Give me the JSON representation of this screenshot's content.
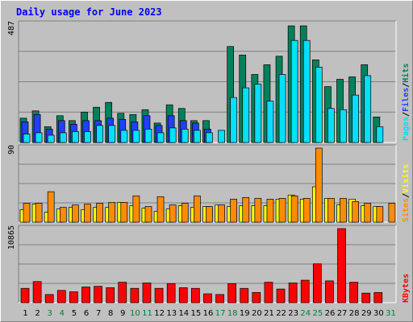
{
  "title": "Daily usage for June 2023",
  "colors": {
    "pages": "#00e0ff",
    "files": "#2040ff",
    "hits": "#00805c",
    "sites": "#ff8c00",
    "visits": "#ffff00",
    "kbytes": "#ff0000",
    "weekend": "#008040",
    "weekday": "#000000",
    "panel_bg": "#c0c0c0",
    "grid": "#808080"
  },
  "legend": {
    "top": {
      "pages": "Pages",
      "files": "Files",
      "hits": "Hits",
      "sep": "/"
    },
    "mid": {
      "sites": "Sites",
      "visits": "Visits",
      "sep": "/"
    },
    "bottom": {
      "kbytes": "KBytes"
    }
  },
  "chart_data": [
    {
      "type": "bar",
      "panel": "hits-files-pages",
      "ymax_label": "487",
      "ylim": [
        0,
        487
      ],
      "categories": [
        "1",
        "2",
        "3",
        "4",
        "5",
        "6",
        "7",
        "8",
        "9",
        "10",
        "11",
        "12",
        "13",
        "14",
        "15",
        "16",
        "17",
        "18",
        "19",
        "20",
        "21",
        "22",
        "23",
        "24",
        "25",
        "26",
        "27",
        "28",
        "29",
        "30",
        "31"
      ],
      "series": [
        {
          "name": "Hits",
          "values": [
            100,
            130,
            65,
            110,
            90,
            125,
            145,
            165,
            120,
            115,
            135,
            80,
            155,
            140,
            90,
            90,
            0,
            395,
            360,
            280,
            320,
            355,
            480,
            480,
            340,
            230,
            260,
            270,
            320,
            105,
            0
          ]
        },
        {
          "name": "Files",
          "values": [
            85,
            115,
            55,
            90,
            75,
            90,
            90,
            100,
            95,
            85,
            110,
            70,
            110,
            90,
            80,
            55,
            0,
            0,
            0,
            0,
            0,
            0,
            0,
            0,
            0,
            0,
            0,
            0,
            0,
            0,
            0
          ]
        },
        {
          "name": "Pages",
          "values": [
            35,
            40,
            30,
            40,
            45,
            45,
            70,
            70,
            50,
            50,
            55,
            40,
            60,
            55,
            50,
            40,
            50,
            185,
            225,
            240,
            170,
            280,
            420,
            420,
            310,
            140,
            135,
            195,
            275,
            65,
            0
          ]
        }
      ]
    },
    {
      "type": "bar",
      "panel": "visits-sites",
      "ymax_label": "90",
      "ylim": [
        0,
        90
      ],
      "categories": [
        "1",
        "2",
        "3",
        "4",
        "5",
        "6",
        "7",
        "8",
        "9",
        "10",
        "11",
        "12",
        "13",
        "14",
        "15",
        "16",
        "17",
        "18",
        "19",
        "20",
        "21",
        "22",
        "23",
        "24",
        "25",
        "26",
        "27",
        "28",
        "29",
        "30",
        "31"
      ],
      "series": [
        {
          "name": "Visits",
          "values": [
            15,
            22,
            12,
            16,
            18,
            15,
            18,
            18,
            24,
            20,
            17,
            13,
            16,
            20,
            18,
            19,
            21,
            19,
            20,
            20,
            20,
            28,
            33,
            28,
            43,
            29,
            21,
            28,
            20,
            19,
            0
          ]
        },
        {
          "name": "Sites",
          "values": [
            23,
            23,
            37,
            18,
            21,
            22,
            23,
            24,
            24,
            32,
            19,
            31,
            21,
            23,
            32,
            19,
            21,
            28,
            30,
            29,
            28,
            29,
            32,
            29,
            90,
            29,
            29,
            25,
            23,
            19,
            23
          ]
        }
      ]
    },
    {
      "type": "bar",
      "panel": "kbytes",
      "ymax_label": "10865",
      "ylim": [
        0,
        10865
      ],
      "categories": [
        "1",
        "2",
        "3",
        "4",
        "5",
        "6",
        "7",
        "8",
        "9",
        "10",
        "11",
        "12",
        "13",
        "14",
        "15",
        "16",
        "17",
        "18",
        "19",
        "20",
        "21",
        "22",
        "23",
        "24",
        "25",
        "26",
        "27",
        "28",
        "29",
        "30",
        "31"
      ],
      "series": [
        {
          "name": "KBytes",
          "values": [
            2100,
            3100,
            1200,
            1800,
            1600,
            2300,
            2400,
            2200,
            3000,
            2100,
            2900,
            2100,
            2800,
            2200,
            2100,
            1300,
            1200,
            2800,
            2100,
            1500,
            3000,
            2000,
            2900,
            3300,
            5700,
            3200,
            10865,
            3000,
            1400,
            1500,
            0
          ]
        }
      ]
    }
  ],
  "day_labels": [
    "1",
    "2",
    "3",
    "4",
    "5",
    "6",
    "7",
    "8",
    "9",
    "10",
    "11",
    "12",
    "13",
    "14",
    "15",
    "16",
    "17",
    "18",
    "19",
    "20",
    "21",
    "22",
    "23",
    "24",
    "25",
    "26",
    "27",
    "28",
    "29",
    "30",
    "31"
  ],
  "weekend_days": [
    3,
    4,
    10,
    11,
    17,
    18,
    24,
    25,
    31
  ]
}
